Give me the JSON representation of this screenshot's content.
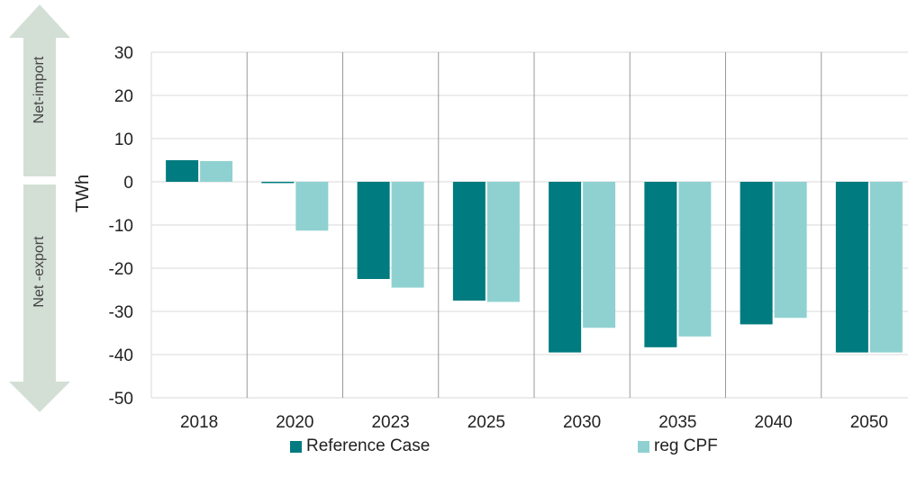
{
  "chart_data": {
    "type": "bar",
    "categories": [
      "2018",
      "2020",
      "2023",
      "2025",
      "2030",
      "2035",
      "2040",
      "2050"
    ],
    "series": [
      {
        "name": "Reference Case",
        "color": "#007b7f",
        "values": [
          5,
          -0.3,
          -22.5,
          -27.5,
          -39.5,
          -38.3,
          -33,
          -39.5
        ]
      },
      {
        "name": "reg CPF",
        "color": "#8fd1d1",
        "values": [
          4.8,
          -11.3,
          -24.5,
          -27.8,
          -33.8,
          -35.8,
          -31.5,
          -39.5
        ]
      }
    ],
    "ylabel": "TWh",
    "ylim": [
      -50,
      30
    ],
    "yticks": [
      30,
      20,
      10,
      0,
      -10,
      -20,
      -30,
      -40,
      -50
    ],
    "grid": true,
    "legend_position": "bottom",
    "side_arrows": [
      {
        "label": "Net-import",
        "direction": "up"
      },
      {
        "label": "Net -export",
        "direction": "down"
      }
    ],
    "arrow_color": "#d3dfd5"
  }
}
